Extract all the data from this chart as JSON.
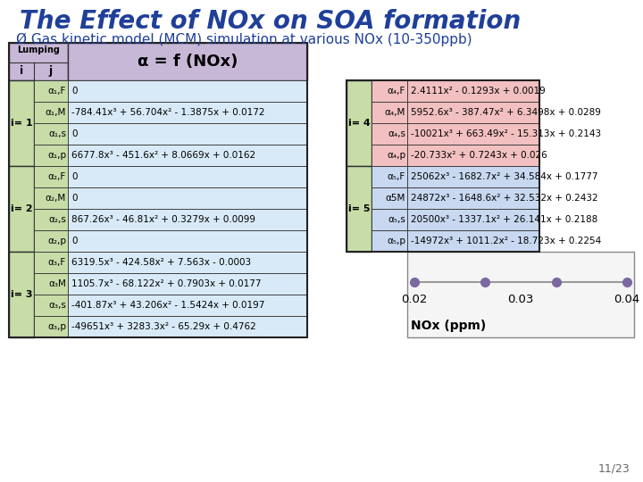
{
  "title": "The Effect of NOx on SOA formation",
  "subtitle": "Ø Gas kinetic model (MCM) simulation at various NOx (10-350ppb)",
  "title_color": "#1F3F99",
  "subtitle_color": "#1F3F99",
  "page_num": "11/23",
  "table_header": "α = f (NOx)",
  "bg_color": "#FFFFFF",
  "header_bg": "#C8B8D8",
  "lumping_bg": "#C8B8D8",
  "left_group_bg": "#C8DCA8",
  "left_row_bg": "#D8EAF8",
  "right_group4_bg": "#F2C0C0",
  "right_group5_bg": "#C8D8F0",
  "left_table_groups": [
    {
      "i_label": "i= 1",
      "rows": [
        [
          "α₁,F",
          "0"
        ],
        [
          "α₁,M",
          "-784.41x³ + 56.704x² - 1.3875x + 0.0172"
        ],
        [
          "α₁,s",
          "0"
        ],
        [
          "α₁,p",
          "6677.8x³ - 451.6x² + 8.0669x + 0.0162"
        ]
      ]
    },
    {
      "i_label": "i= 2",
      "rows": [
        [
          "α₂,F",
          "0"
        ],
        [
          "α₂,M",
          "0"
        ],
        [
          "α₂,s",
          "867.26x³ - 46.81x² + 0.3279x + 0.0099"
        ],
        [
          "α₂,p",
          "0"
        ]
      ]
    },
    {
      "i_label": "i= 3",
      "rows": [
        [
          "α₃,F",
          "6319.5x³ - 424.58x² + 7.563x - 0.0003"
        ],
        [
          "α₃M",
          "1105.7x³ - 68.122x² + 0.7903x + 0.0177"
        ],
        [
          "α₃,s",
          "-401.87x³ + 43.206x² - 1.5424x + 0.0197"
        ],
        [
          "α₃,p",
          "-49651x³ + 3283.3x² - 65.29x + 0.4762"
        ]
      ]
    }
  ],
  "right_table_groups": [
    {
      "i_label": "i= 4",
      "color": "#F2C0C0",
      "rows": [
        [
          "α₄,F",
          "2.4111x² - 0.1293x + 0.0019"
        ],
        [
          "α₄,M",
          "5952.6x³ - 387.47x² + 6.3498x + 0.0289"
        ],
        [
          "α₄,s",
          "-10021x³ + 663.49x² - 15.313x + 0.2143"
        ],
        [
          "α₄,p",
          "-20.733x² + 0.7243x + 0.026"
        ]
      ]
    },
    {
      "i_label": "i= 5",
      "color": "#C8D8F0",
      "rows": [
        [
          "α₅,F",
          "25062x³ - 1682.7x² + 34.584x + 0.1777"
        ],
        [
          "α5M",
          "24872x³ - 1648.6x² + 32.532x + 0.2432"
        ],
        [
          "α₅,s",
          "20500x³ - 1337.1x² + 26.141x + 0.2188"
        ],
        [
          "α₅,p",
          "-14972x³ + 1011.2x² - 18.723x + 0.2254"
        ]
      ]
    }
  ]
}
